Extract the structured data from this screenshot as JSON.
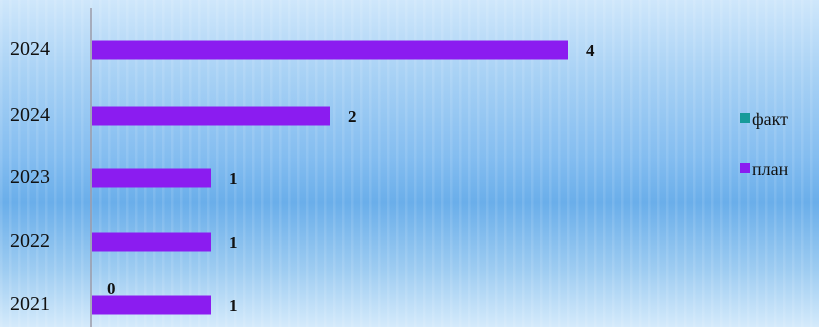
{
  "colors": {
    "fact": "#169b9a",
    "plan": "#8b1cf0",
    "axis": "#9a9aa8"
  },
  "chart_data": {
    "type": "bar",
    "orientation": "horizontal",
    "title": "",
    "xlabel": "",
    "ylabel": "",
    "categories": [
      "2024",
      "2024",
      "2023",
      "2022",
      "2021"
    ],
    "series": [
      {
        "name": "факт",
        "values": [
          null,
          null,
          null,
          null,
          0
        ],
        "labels": [
          "",
          "",
          "",
          "",
          "0"
        ]
      },
      {
        "name": "план",
        "values": [
          4,
          2,
          1,
          1,
          1
        ],
        "labels": [
          "4",
          "2",
          "1",
          "1",
          "1"
        ]
      }
    ],
    "xlim": [
      0,
      5
    ],
    "grid": false,
    "legend": "right"
  }
}
